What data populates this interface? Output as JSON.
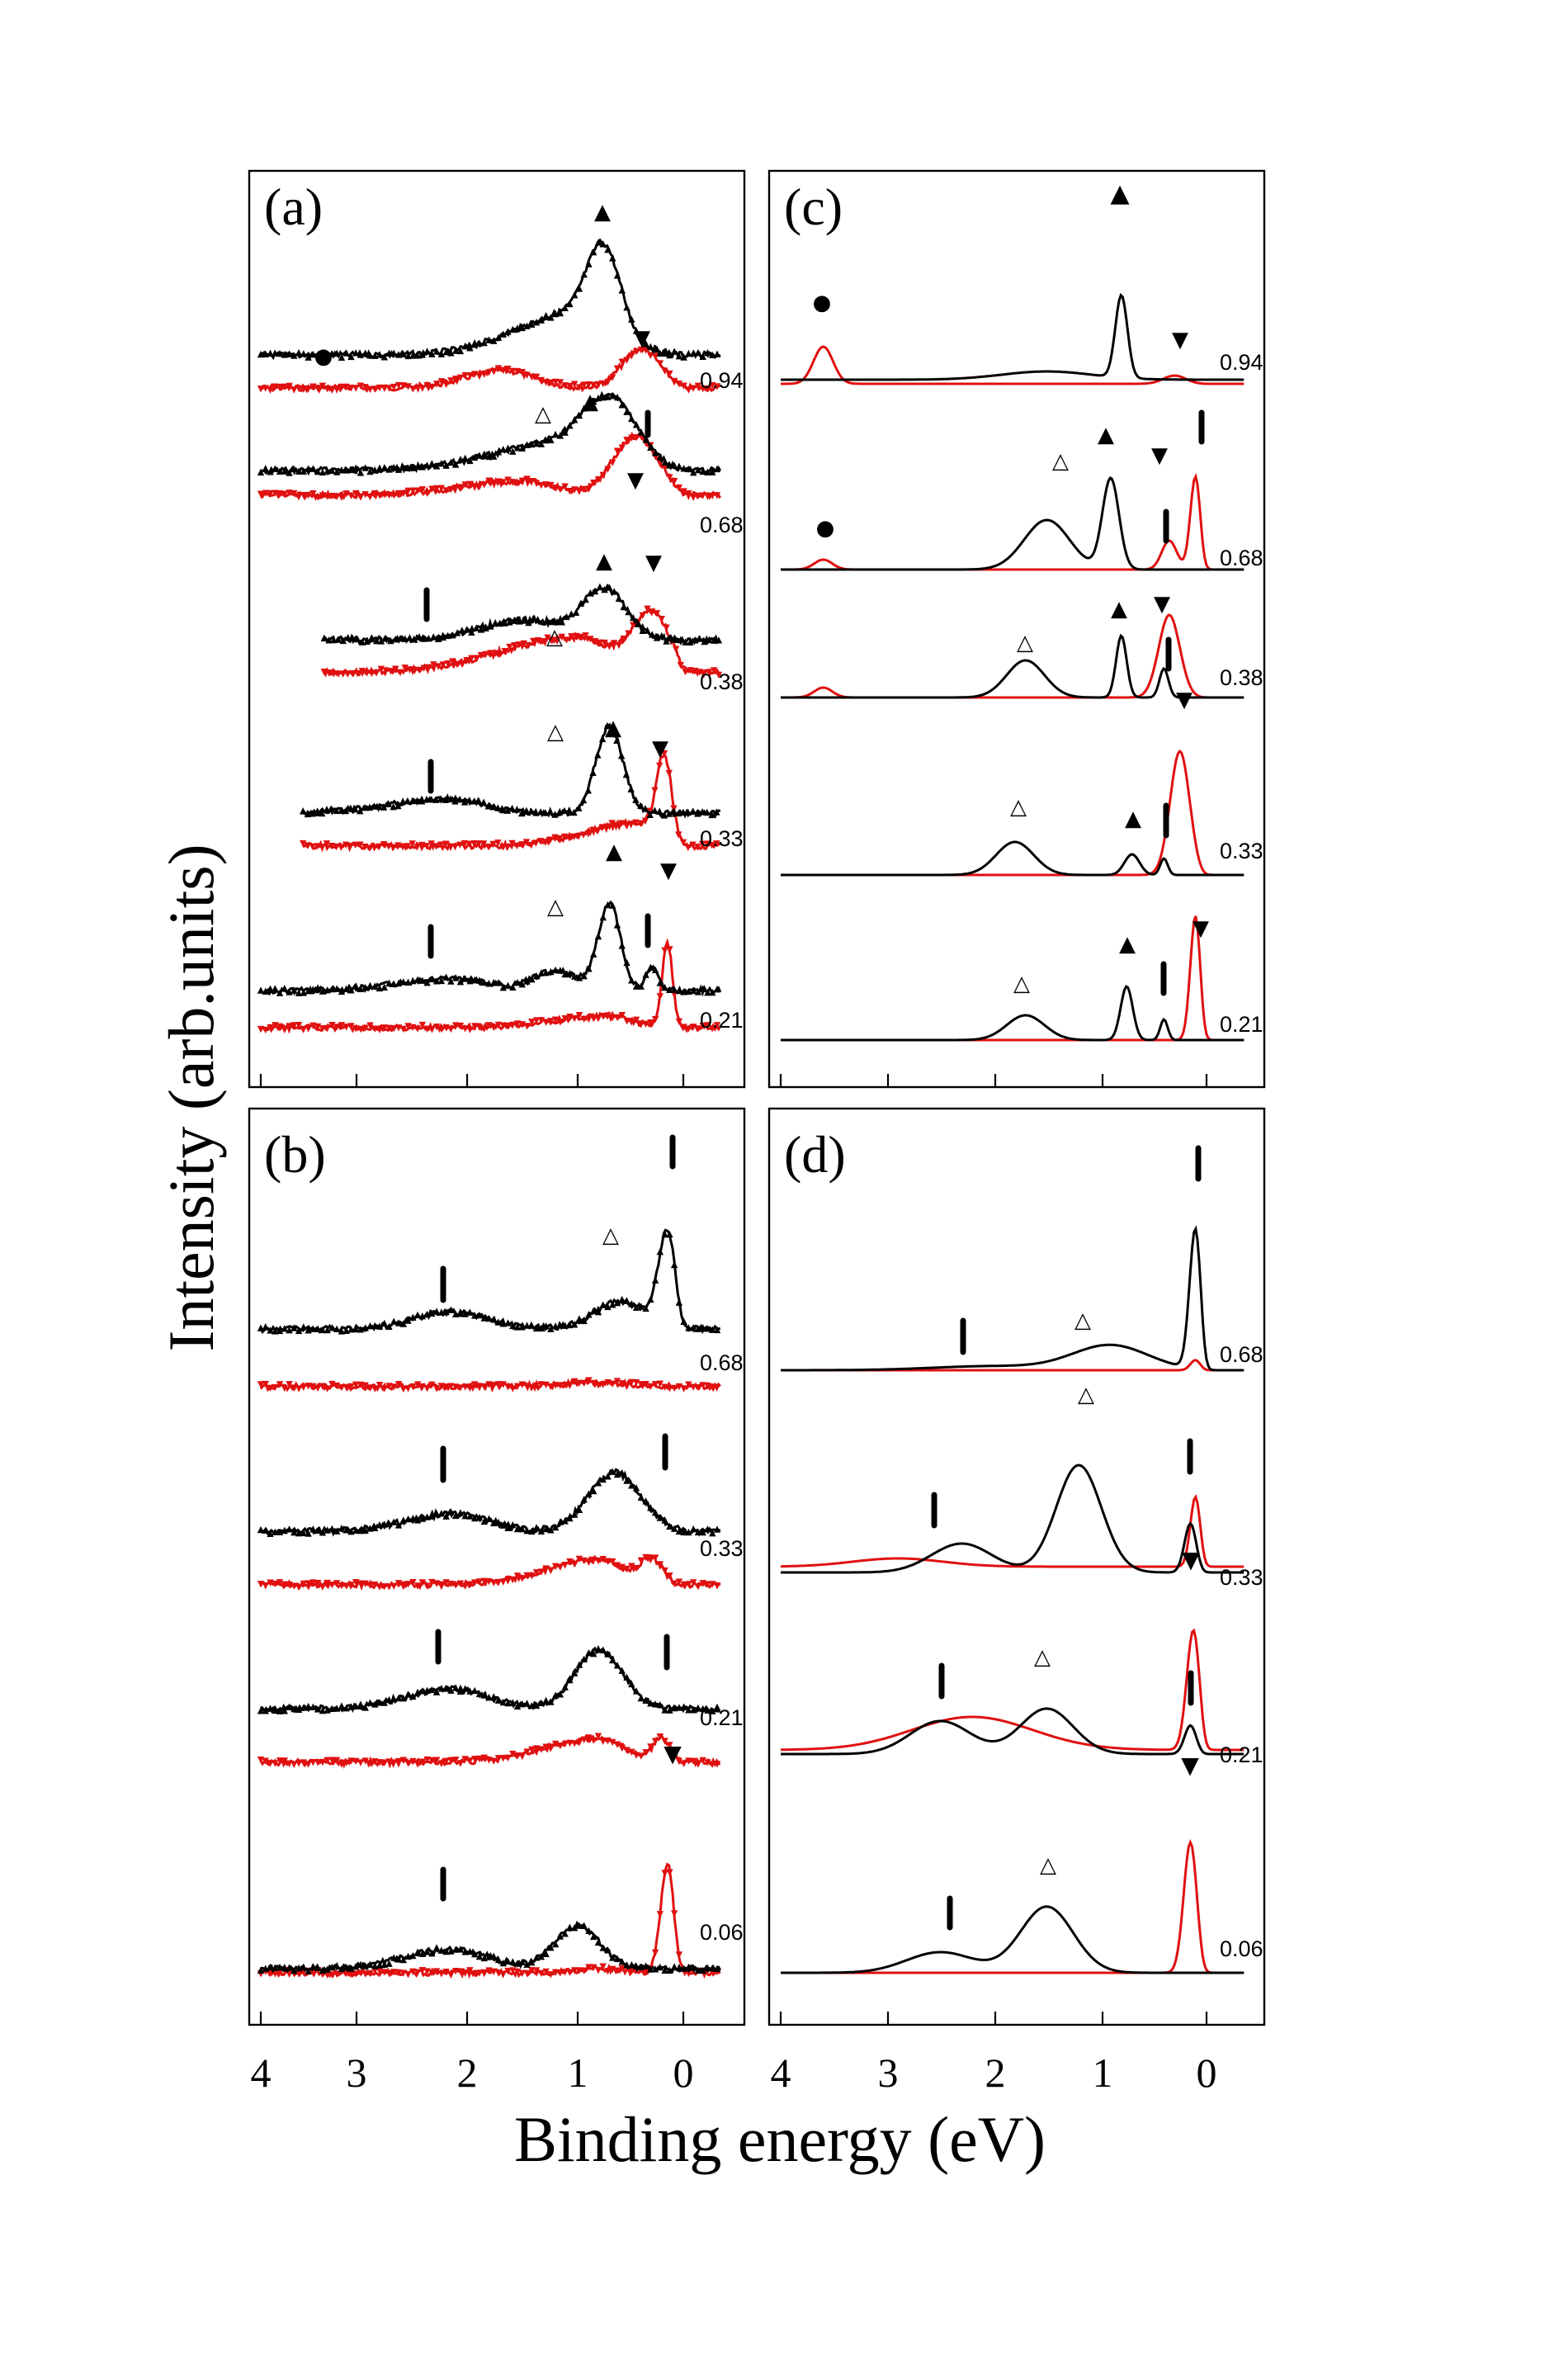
{
  "colors": {
    "black": "#000000",
    "red": "#e01010"
  },
  "axis": {
    "xlabel": "Binding energy (eV)",
    "ylabel": "Intensity (arb.units)",
    "xticks": [
      "4",
      "3",
      "2",
      "1",
      "0"
    ],
    "xrange": [
      4.0,
      -0.5
    ]
  },
  "chart_data": [
    {
      "panel": "(a)",
      "type": "line",
      "kind": "experimental",
      "curves": [
        {
          "label": "0.94",
          "black": [
            [
              1.0,
              [
                0.55,
                0.5,
                0.8
              ]
            ],
            [
              0.75,
              [
                1.0,
                0.22
              ]
            ]
          ],
          "red": [
            [
              1.7,
              [
                0.22,
                0.4,
                0.5
              ]
            ],
            [
              0.4,
              [
                0.5,
                0.25
              ]
            ]
          ],
          "black_start": 4.0,
          "red_start": 4.0
        },
        {
          "label": "0.68",
          "black": [
            [
              1.0,
              [
                0.4,
                0.4,
                1.0
              ]
            ],
            [
              0.65,
              [
                0.75,
                0.35
              ]
            ]
          ],
          "red": [
            [
              1.5,
              [
                0.18,
                0.4,
                0.8
              ]
            ],
            [
              0.45,
              [
                0.75,
                0.3
              ]
            ]
          ],
          "black_start": 4.0,
          "red_start": 4.0
        },
        {
          "label": "0.38",
          "black": [
            [
              1.5,
              [
                0.25,
                0.45,
                0.6
              ]
            ],
            [
              0.75,
              [
                0.65,
                0.3
              ]
            ]
          ],
          "red": [
            [
              1.0,
              [
                0.45,
                0.45,
                1.0
              ]
            ],
            [
              0.3,
              [
                0.75,
                0.25
              ]
            ]
          ],
          "black_start": 3.4,
          "red_start": 3.4
        },
        {
          "label": "0.33",
          "black": [
            [
              2.2,
              [
                0.18,
                0.45,
                0.8
              ]
            ],
            [
              0.7,
              [
                1.1,
                0.18
              ]
            ]
          ],
          "red": [
            [
              0.4,
              [
                0.3,
                0.3,
                0.7
              ]
            ],
            [
              0.18,
              [
                1.0,
                0.1
              ]
            ]
          ],
          "black_start": 3.6,
          "red_start": 3.6
        },
        {
          "label": "0.21",
          "black": [
            [
              2.2,
              [
                0.15,
                0.5,
                0.7
              ]
            ],
            [
              1.2,
              [
                0.25,
                0.3
              ]
            ],
            [
              0.7,
              [
                1.1,
                0.15
              ]
            ],
            [
              0.3,
              [
                0.3,
                0.08
              ]
            ]
          ],
          "red": [
            [
              0.7,
              [
                0.15,
                0.3,
                0.7
              ]
            ],
            [
              0.15,
              [
                1.1,
                0.07
              ]
            ]
          ],
          "black_start": 4.0,
          "red_start": 4.0
        }
      ],
      "markers": [
        "●",
        "▲",
        "▼",
        "△",
        "▲",
        "▼",
        "▲",
        "▼",
        "△",
        "▲",
        "▼",
        "△",
        "▲",
        "▼",
        "△"
      ]
    },
    {
      "panel": "(b)",
      "type": "line",
      "kind": "experimental",
      "curves": [
        {
          "label": "0.68",
          "black": [
            [
              2.2,
              [
                0.22,
                0.5,
                0.5
              ]
            ],
            [
              0.6,
              [
                0.35,
                0.35
              ]
            ],
            [
              0.15,
              [
                1.2,
                0.12
              ]
            ]
          ],
          "red": [
            [
              0.8,
              [
                0.05,
                0.4,
                0.5
              ]
            ]
          ]
        },
        {
          "label": "0.33",
          "black": [
            [
              2.2,
              [
                0.22,
                0.5,
                0.6
              ]
            ],
            [
              0.65,
              [
                0.75,
                0.35
              ]
            ]
          ],
          "red": [
            [
              0.8,
              [
                0.32,
                0.35,
                0.7
              ]
            ],
            [
              0.3,
              [
                0.3,
                0.15
              ]
            ]
          ]
        },
        {
          "label": "0.21",
          "black": [
            [
              2.2,
              [
                0.25,
                0.5,
                0.6
              ]
            ],
            [
              0.8,
              [
                0.75,
                0.32
              ]
            ]
          ],
          "red": [
            [
              0.8,
              [
                0.3,
                0.35,
                0.7
              ]
            ],
            [
              0.2,
              [
                0.3,
                0.12
              ]
            ]
          ]
        },
        {
          "label": "0.06",
          "black": [
            [
              2.2,
              [
                0.25,
                0.5,
                0.6
              ]
            ],
            [
              1.0,
              [
                0.55,
                0.3
              ]
            ]
          ],
          "red": [
            [
              0.15,
              [
                1.4,
                0.09
              ]
            ],
            [
              0.8,
              [
                0.05,
                0.3
              ]
            ]
          ]
        }
      ],
      "markers": [
        "△",
        "▼"
      ]
    },
    {
      "panel": "(c)",
      "type": "line",
      "kind": "calculated",
      "curves": [
        {
          "label": "0.94",
          "black": [
            [
              0.8,
              [
                1.0,
                0.08
              ]
            ],
            [
              1.5,
              [
                0.1,
                0.6
              ]
            ]
          ],
          "red": [
            [
              3.6,
              [
                0.45,
                0.13
              ]
            ],
            [
              0.3,
              [
                0.1,
                0.15
              ]
            ]
          ]
        },
        {
          "label": "0.68",
          "black": [
            [
              0.9,
              [
                1.1,
                0.11
              ]
            ],
            [
              1.5,
              [
                0.6,
                0.3
              ]
            ]
          ],
          "red": [
            [
              3.6,
              [
                0.12,
                0.12
              ]
            ],
            [
              0.1,
              [
                1.2,
                0.07
              ]
            ],
            [
              0.35,
              [
                0.35,
                0.1
              ]
            ]
          ]
        },
        {
          "label": "0.38",
          "black": [
            [
              0.8,
              [
                0.75,
                0.07
              ]
            ],
            [
              1.7,
              [
                0.45,
                0.25
              ]
            ],
            [
              0.4,
              [
                0.35,
                0.06
              ]
            ]
          ],
          "red": [
            [
              3.6,
              [
                0.12,
                0.12
              ]
            ],
            [
              0.35,
              [
                1.0,
                0.14
              ]
            ]
          ]
        },
        {
          "label": "0.33",
          "black": [
            [
              1.8,
              [
                0.4,
                0.25
              ]
            ],
            [
              0.7,
              [
                0.25,
                0.1
              ]
            ],
            [
              0.4,
              [
                0.2,
                0.05
              ]
            ]
          ],
          "red": [
            [
              0.25,
              [
                1.5,
                0.13
              ]
            ]
          ]
        },
        {
          "label": "0.21",
          "black": [
            [
              1.7,
              [
                0.3,
                0.25
              ]
            ],
            [
              0.75,
              [
                0.65,
                0.08
              ]
            ],
            [
              0.4,
              [
                0.25,
                0.05
              ]
            ]
          ],
          "red": [
            [
              0.1,
              [
                1.6,
                0.07
              ]
            ]
          ]
        }
      ],
      "markers": [
        "●",
        "▲",
        "▼",
        "△",
        "▲",
        "▼",
        "●",
        "△",
        "▲",
        "▼",
        "△",
        "▲",
        "▼",
        "△",
        "▲",
        "▼"
      ]
    },
    {
      "panel": "(d)",
      "type": "line",
      "kind": "calculated",
      "curves": [
        {
          "label": "0.68",
          "black": [
            [
              0.1,
              [
                1.8,
                0.08
              ]
            ],
            [
              0.9,
              [
                0.3,
                0.5
              ]
            ],
            [
              2.0,
              [
                0.05,
                0.8
              ]
            ]
          ],
          "red": [
            [
              0.1,
              [
                0.13,
                0.07
              ]
            ]
          ]
        },
        {
          "label": "0.33",
          "black": [
            [
              1.2,
              [
                1.3,
                0.3
              ]
            ],
            [
              2.3,
              [
                0.35,
                0.4
              ]
            ],
            [
              0.15,
              [
                0.6,
                0.08
              ]
            ]
          ],
          "red": [
            [
              0.1,
              [
                0.9,
                0.07
              ]
            ],
            [
              2.9,
              [
                0.1,
                0.6
              ]
            ]
          ]
        },
        {
          "label": "0.21",
          "black": [
            [
              1.5,
              [
                0.55,
                0.35
              ]
            ],
            [
              2.5,
              [
                0.4,
                0.4
              ]
            ],
            [
              0.15,
              [
                0.35,
                0.08
              ]
            ]
          ],
          "red": [
            [
              0.12,
              [
                1.5,
                0.09
              ]
            ],
            [
              2.2,
              [
                0.4,
                0.8
              ]
            ]
          ]
        },
        {
          "label": "0.06",
          "black": [
            [
              1.5,
              [
                0.8,
                0.35
              ]
            ],
            [
              2.5,
              [
                0.25,
                0.45
              ]
            ]
          ],
          "red": [
            [
              0.15,
              [
                1.6,
                0.09
              ]
            ]
          ]
        }
      ],
      "markers": [
        "△",
        "△",
        "▼",
        "△",
        "▼",
        "△"
      ]
    }
  ]
}
